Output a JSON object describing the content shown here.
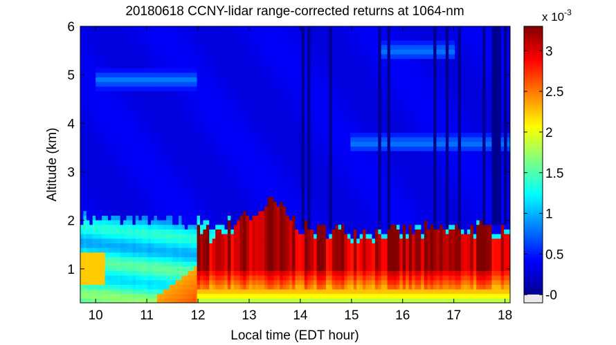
{
  "chart_data": {
    "type": "heatmap",
    "title": "20180618 CCNY-lidar range-corrected returns at 1064-nm",
    "xlabel": "Local time (EDT hour)",
    "ylabel": "Altitude (km)",
    "xlim": [
      9.7,
      18.1
    ],
    "ylim": [
      0.3,
      6.0
    ],
    "xticks": [
      "10",
      "11",
      "12",
      "13",
      "14",
      "15",
      "16",
      "17",
      "18"
    ],
    "yticks": [
      "1",
      "2",
      "3",
      "4",
      "5",
      "6"
    ],
    "colorbar": {
      "multiplier_label": "x 10",
      "multiplier_exponent": "-3",
      "ticks": [
        "-0",
        "0.5",
        "1",
        "1.5",
        "2",
        "2.5",
        "3"
      ],
      "range": [
        -0.1,
        3.3
      ],
      "colormap": "jet",
      "low_color": "#00008f",
      "high_color": "#800000"
    },
    "features": [
      {
        "kind": "boundary-layer-top",
        "x": [
          9.7,
          11.0,
          12.0,
          12.5,
          13.0,
          13.5,
          14.0,
          15.0,
          16.0,
          17.0,
          18.1
        ],
        "y": [
          2.05,
          2.0,
          1.95,
          1.9,
          2.1,
          2.4,
          1.85,
          1.8,
          1.8,
          1.85,
          1.9
        ]
      },
      {
        "kind": "aerosol-layer-top",
        "x": [
          12.0,
          12.5,
          13.0,
          13.5,
          14.0,
          15.0,
          16.0,
          17.0,
          18.1
        ],
        "y": [
          1.7,
          1.8,
          2.2,
          2.5,
          1.85,
          1.75,
          1.75,
          1.8,
          1.85
        ]
      },
      {
        "kind": "elevated-layer",
        "x_range": [
          10.0,
          12.0
        ],
        "altitude_km": 4.9
      },
      {
        "kind": "elevated-layer",
        "x_range": [
          15.0,
          18.1
        ],
        "altitude_km": 3.6
      },
      {
        "kind": "elevated-layer",
        "x_range": [
          15.5,
          17.0
        ],
        "altitude_km": 5.5
      }
    ],
    "grid": false
  }
}
